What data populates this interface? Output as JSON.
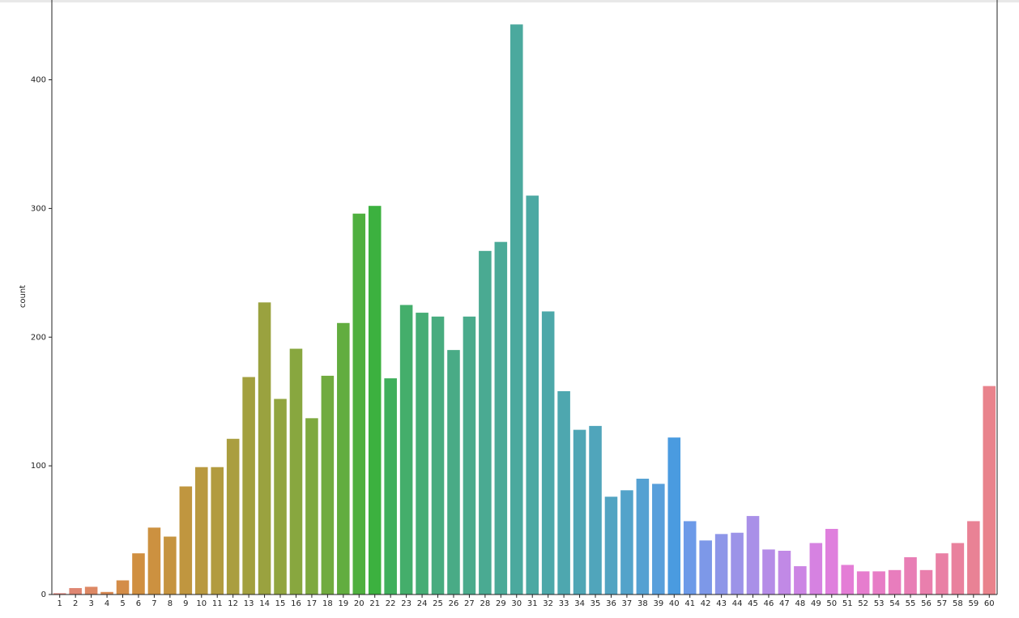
{
  "chart_data": {
    "type": "bar",
    "y_label": "count",
    "categories": [
      "1",
      "2",
      "3",
      "4",
      "5",
      "6",
      "7",
      "8",
      "9",
      "10",
      "11",
      "12",
      "13",
      "14",
      "15",
      "16",
      "17",
      "18",
      "19",
      "20",
      "21",
      "22",
      "23",
      "24",
      "25",
      "26",
      "27",
      "28",
      "29",
      "30",
      "31",
      "32",
      "33",
      "34",
      "35",
      "36",
      "37",
      "38",
      "39",
      "40",
      "41",
      "42",
      "43",
      "44",
      "45",
      "46",
      "47",
      "48",
      "49",
      "50",
      "51",
      "52",
      "53",
      "54",
      "55",
      "56",
      "57",
      "58",
      "59",
      "60"
    ],
    "values": [
      1,
      5,
      6,
      2,
      11,
      32,
      52,
      45,
      84,
      99,
      99,
      121,
      169,
      227,
      152,
      191,
      137,
      170,
      211,
      296,
      302,
      168,
      225,
      219,
      216,
      190,
      216,
      267,
      274,
      443,
      310,
      220,
      158,
      128,
      131,
      76,
      81,
      90,
      86,
      122,
      57,
      42,
      47,
      48,
      61,
      35,
      34,
      22,
      40,
      51,
      23,
      18,
      18,
      19,
      29,
      19,
      32,
      40,
      57,
      162
    ],
    "colors": [
      "#e1857d",
      "#df8672",
      "#dd8864",
      "#d98b55",
      "#d48d48",
      "#d08f40",
      "#cc9140",
      "#c6943f",
      "#c0963f",
      "#b9993f",
      "#b29b3f",
      "#aa9e3f",
      "#a3a03f",
      "#9aa23f",
      "#91a53f",
      "#88a73f",
      "#7ea93f",
      "#71ab3f",
      "#62ad3f",
      "#4fb03f",
      "#3cb13f",
      "#3faf5c",
      "#44ae6b",
      "#46ad75",
      "#48ac7f",
      "#49ab86",
      "#4aab8c",
      "#4aaa92",
      "#4baa98",
      "#4ba99e",
      "#4ca9a3",
      "#4da8a9",
      "#4ea7af",
      "#4fa6b5",
      "#50a5bb",
      "#52a4c2",
      "#53a3ca",
      "#55a1d2",
      "#589fdb",
      "#4a9be0",
      "#6c9ae8",
      "#7d98e8",
      "#8d96e8",
      "#9c93e8",
      "#a990e8",
      "#b58ce7",
      "#c189e6",
      "#cc85e4",
      "#d682e1",
      "#df7fdd",
      "#e47dd6",
      "#e67dce",
      "#e77dc6",
      "#e87dbd",
      "#e87eb5",
      "#e97fad",
      "#e980a5",
      "#e9819d",
      "#e98295",
      "#e9838c"
    ],
    "ylim": [
      0,
      462
    ],
    "yticks": [
      0,
      100,
      200,
      300,
      400
    ]
  }
}
